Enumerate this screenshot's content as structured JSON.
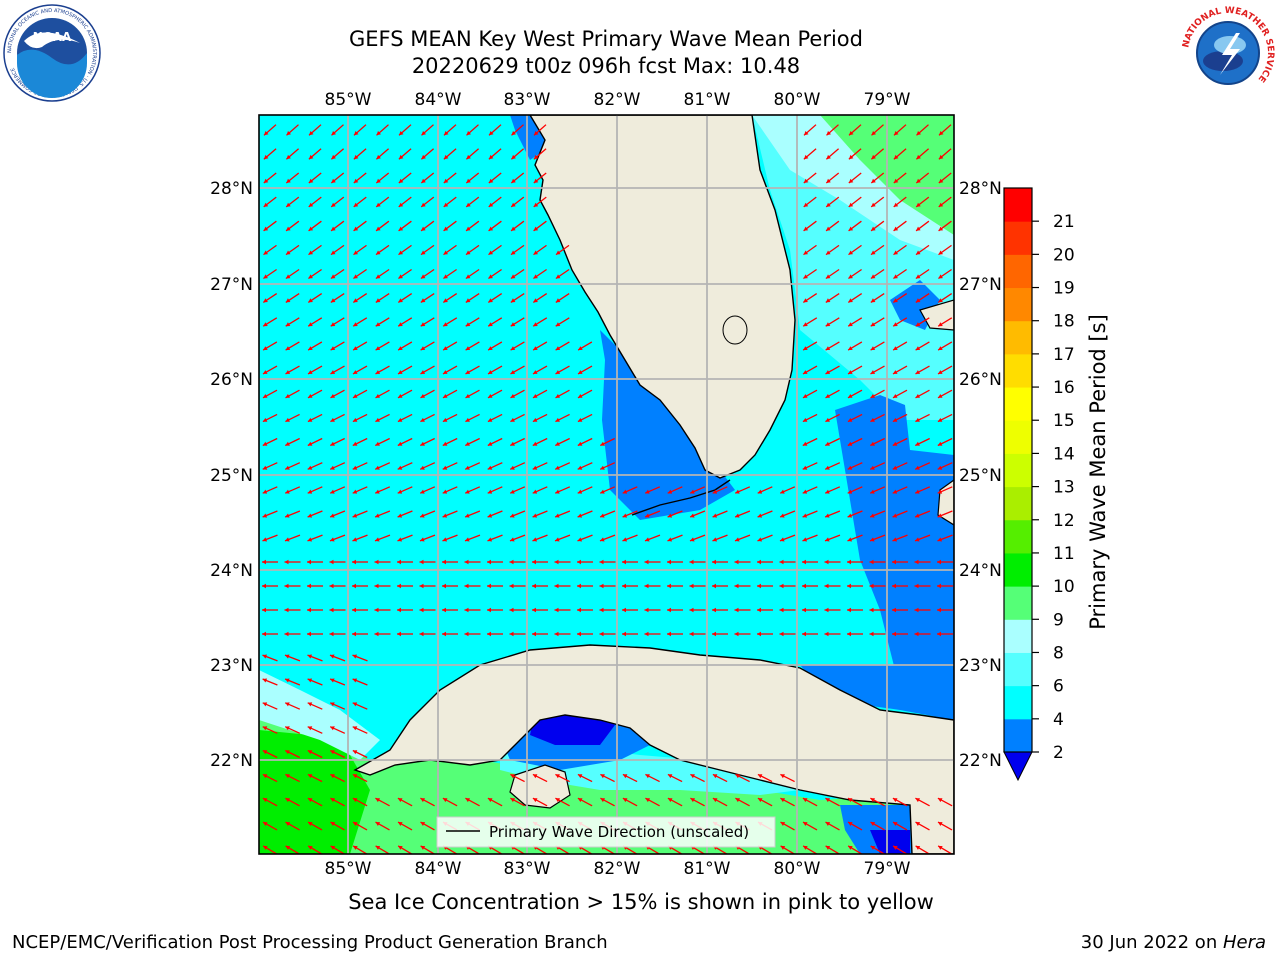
{
  "title": {
    "line1": "GEFS MEAN Key West Primary Wave Mean Period",
    "line2": "20220629 t00z 096h fcst   Max: 10.48"
  },
  "map": {
    "lon_labels": [
      "85°W",
      "84°W",
      "83°W",
      "82°W",
      "81°W",
      "80°W",
      "79°W"
    ],
    "lat_labels": [
      "28°N",
      "27°N",
      "26°N",
      "25°N",
      "24°N",
      "23°N",
      "22°N"
    ],
    "legend_label": "Primary Wave Direction (unscaled)",
    "colors": {
      "land": "#efecdc",
      "ocean_4_6": "#00ffff",
      "ocean_2_4": "#0080ff",
      "ocean_lt_2": "#0000ee",
      "ocean_6_8": "#55ffff",
      "ocean_8_9": "#aaffff",
      "ocean_9_10": "#55ff77",
      "ocean_10_11": "#00ee00",
      "arrow": "#ff0000",
      "grid": "#b4b4b4"
    }
  },
  "colorbar": {
    "label": "Primary Wave Mean Period [s]",
    "ticks": [
      "2",
      "4",
      "6",
      "8",
      "9",
      "10",
      "11",
      "12",
      "13",
      "14",
      "15",
      "16",
      "17",
      "18",
      "19",
      "20",
      "21"
    ],
    "colors": [
      "#0080ff",
      "#00ffff",
      "#55ffff",
      "#aaffff",
      "#55ff77",
      "#00ee00",
      "#55ee00",
      "#aaee00",
      "#ccff00",
      "#eeff00",
      "#ffff00",
      "#ffdd00",
      "#ffbb00",
      "#ff8800",
      "#ff6600",
      "#ff3300",
      "#ff0000"
    ],
    "extend_color": "#0000ee"
  },
  "logos": {
    "noaa_text": "NOAA",
    "noaa_ring": "NATIONAL OCEANIC AND ATMOSPHERIC ADMINISTRATION · U.S. DEPARTMENT OF COMMERCE",
    "nws_ring": "NATIONAL WEATHER SERVICE"
  },
  "footer": {
    "note": "Sea Ice Concentration > 15% is shown in pink to yellow",
    "left": "NCEP/EMC/Verification Post Processing Product Generation Branch",
    "right_prefix": "30 Jun 2022 on ",
    "right_italic": "Hera"
  }
}
